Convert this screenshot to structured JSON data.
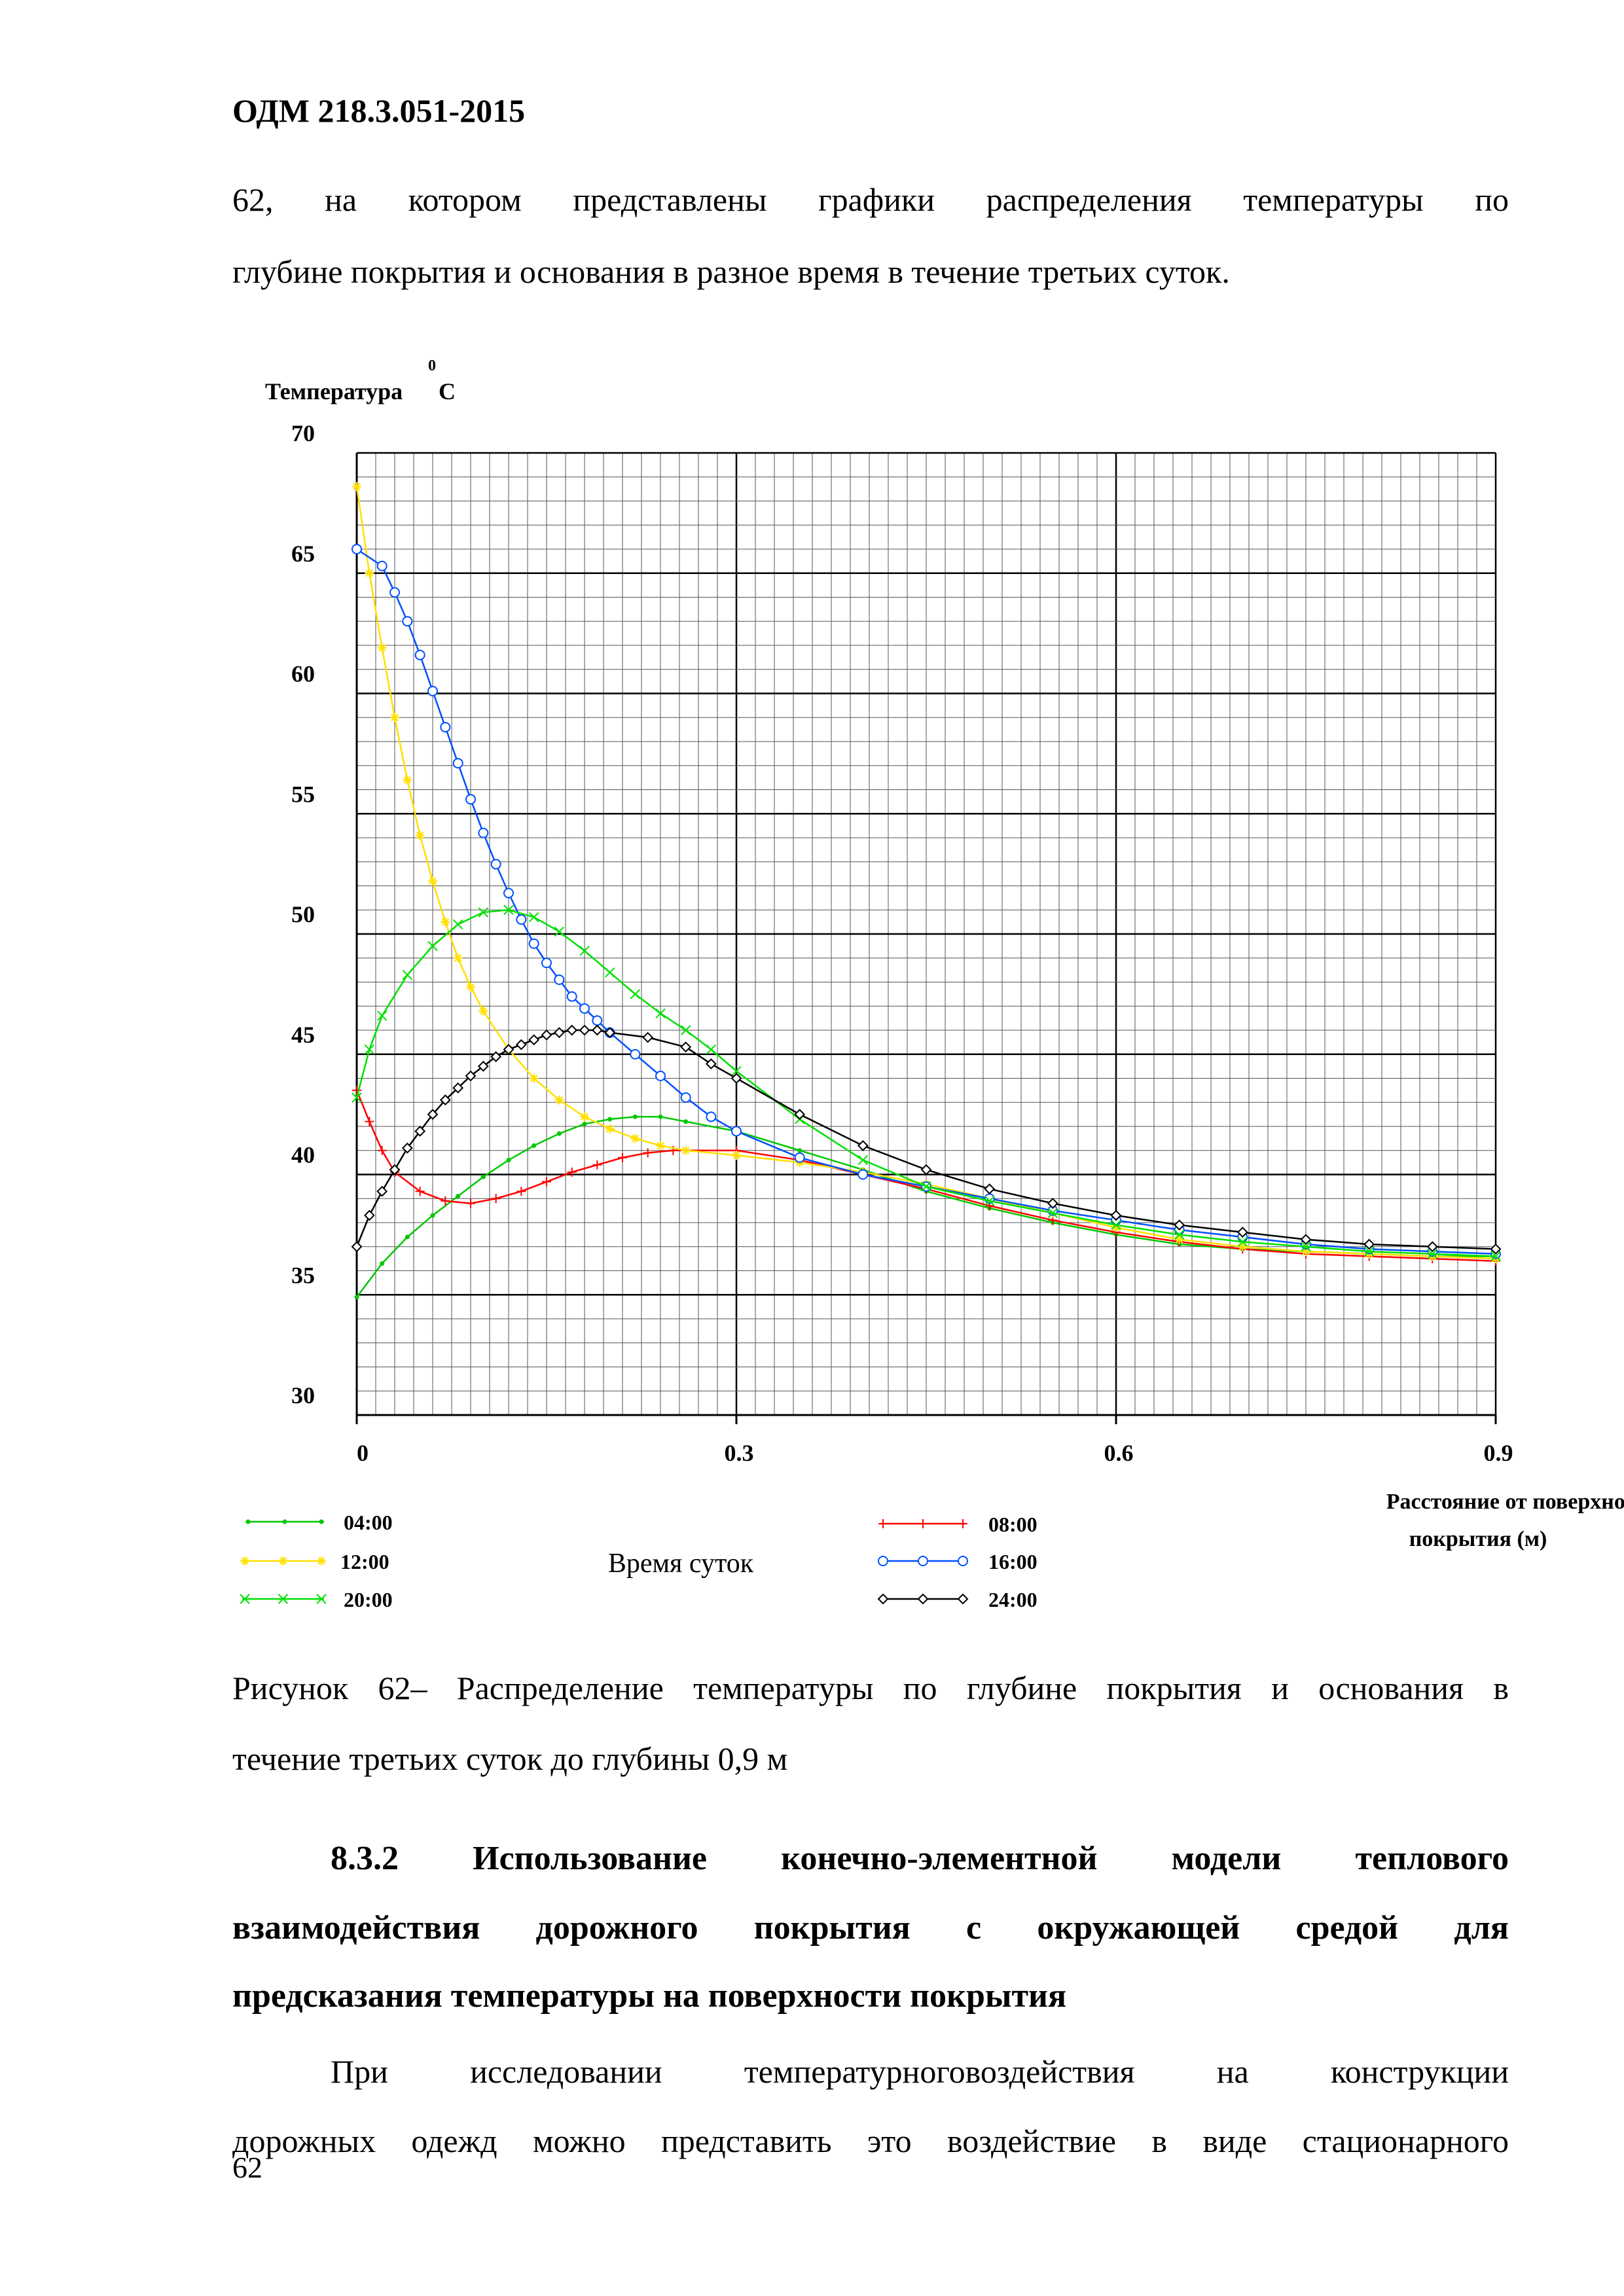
{
  "header": {
    "doc_code": "ОДМ 218.3.051-2015"
  },
  "intro": {
    "line1": "62, на котором представлены графики распределения температуры по",
    "line2": "глубине покрытия и основания в разное время в течение третьих суток."
  },
  "chart_data": {
    "type": "line",
    "ylabel": "Температура",
    "ylabel_sup": "0",
    "ylabel_unit": "C",
    "xlabel_line1": "Расстояние от поверхности",
    "xlabel_line2": "покрытия (м)",
    "legend_title": "Время суток",
    "xlim": [
      0,
      0.9
    ],
    "ylim": [
      30,
      70
    ],
    "x_ticks": [
      "0",
      "0.3",
      "0.6",
      "0.9"
    ],
    "y_ticks": [
      "30",
      "35",
      "40",
      "45",
      "50",
      "55",
      "60",
      "65",
      "70"
    ],
    "grid": true,
    "series": [
      {
        "name": "04:00",
        "color": "#00c800",
        "marker": "dot",
        "x": [
          0,
          0.02,
          0.04,
          0.06,
          0.08,
          0.1,
          0.12,
          0.14,
          0.16,
          0.18,
          0.2,
          0.22,
          0.24,
          0.26,
          0.3,
          0.35,
          0.4,
          0.45,
          0.5,
          0.55,
          0.6,
          0.65,
          0.7,
          0.75,
          0.8,
          0.85,
          0.9
        ],
        "y": [
          34.9,
          36.3,
          37.4,
          38.3,
          39.1,
          39.9,
          40.6,
          41.2,
          41.7,
          42.1,
          42.3,
          42.4,
          42.4,
          42.2,
          41.8,
          41.0,
          40.2,
          39.3,
          38.6,
          38.0,
          37.5,
          37.1,
          36.9,
          36.8,
          36.7,
          36.6,
          36.6
        ]
      },
      {
        "name": "08:00",
        "color": "#ff0000",
        "marker": "plus",
        "x": [
          0,
          0.01,
          0.02,
          0.03,
          0.05,
          0.07,
          0.09,
          0.11,
          0.13,
          0.15,
          0.17,
          0.19,
          0.21,
          0.23,
          0.25,
          0.3,
          0.35,
          0.4,
          0.45,
          0.5,
          0.55,
          0.6,
          0.65,
          0.7,
          0.75,
          0.8,
          0.85,
          0.9
        ],
        "y": [
          43.5,
          42.2,
          41.0,
          40.1,
          39.3,
          38.9,
          38.8,
          39.0,
          39.3,
          39.7,
          40.1,
          40.4,
          40.7,
          40.9,
          41.0,
          41.0,
          40.6,
          40.0,
          39.4,
          38.7,
          38.1,
          37.6,
          37.2,
          36.9,
          36.7,
          36.6,
          36.5,
          36.4
        ]
      },
      {
        "name": "12:00",
        "color": "#ffe000",
        "marker": "star",
        "x": [
          0,
          0.01,
          0.02,
          0.03,
          0.04,
          0.05,
          0.06,
          0.07,
          0.08,
          0.09,
          0.1,
          0.12,
          0.14,
          0.16,
          0.18,
          0.2,
          0.22,
          0.24,
          0.26,
          0.3,
          0.35,
          0.4,
          0.45,
          0.5,
          0.55,
          0.6,
          0.65,
          0.7,
          0.75,
          0.8,
          0.85,
          0.9
        ],
        "y": [
          68.6,
          65.0,
          61.9,
          59.0,
          56.4,
          54.1,
          52.2,
          50.5,
          49.0,
          47.8,
          46.8,
          45.2,
          44.0,
          43.1,
          42.4,
          41.9,
          41.5,
          41.2,
          41.0,
          40.8,
          40.5,
          40.1,
          39.6,
          39.0,
          38.4,
          37.8,
          37.3,
          37.0,
          36.8,
          36.7,
          36.6,
          36.5
        ]
      },
      {
        "name": "16:00",
        "color": "#0050ff",
        "marker": "circle",
        "x": [
          0,
          0.02,
          0.03,
          0.04,
          0.05,
          0.06,
          0.07,
          0.08,
          0.09,
          0.1,
          0.11,
          0.12,
          0.13,
          0.14,
          0.15,
          0.16,
          0.17,
          0.18,
          0.19,
          0.2,
          0.22,
          0.24,
          0.26,
          0.28,
          0.3,
          0.35,
          0.4,
          0.45,
          0.5,
          0.55,
          0.6,
          0.65,
          0.7,
          0.75,
          0.8,
          0.85,
          0.9
        ],
        "y": [
          66.0,
          65.3,
          64.2,
          63.0,
          61.6,
          60.1,
          58.6,
          57.1,
          55.6,
          54.2,
          52.9,
          51.7,
          50.6,
          49.6,
          48.8,
          48.1,
          47.4,
          46.9,
          46.4,
          45.9,
          45.0,
          44.1,
          43.2,
          42.4,
          41.8,
          40.7,
          40.0,
          39.5,
          39.0,
          38.5,
          38.1,
          37.7,
          37.4,
          37.1,
          36.9,
          36.8,
          36.7
        ]
      },
      {
        "name": "20:00",
        "color": "#00e000",
        "marker": "x",
        "x": [
          0,
          0.01,
          0.02,
          0.04,
          0.06,
          0.08,
          0.1,
          0.12,
          0.14,
          0.16,
          0.18,
          0.2,
          0.22,
          0.24,
          0.26,
          0.28,
          0.3,
          0.35,
          0.4,
          0.45,
          0.5,
          0.55,
          0.6,
          0.65,
          0.7,
          0.75,
          0.8,
          0.85,
          0.9
        ],
        "y": [
          43.2,
          45.2,
          46.6,
          48.3,
          49.5,
          50.4,
          50.9,
          51.0,
          50.7,
          50.1,
          49.3,
          48.4,
          47.5,
          46.7,
          46.0,
          45.2,
          44.3,
          42.3,
          40.6,
          39.5,
          38.9,
          38.4,
          37.9,
          37.5,
          37.2,
          37.0,
          36.8,
          36.7,
          36.6
        ]
      },
      {
        "name": "24:00",
        "color": "#000000",
        "marker": "diamond",
        "x": [
          0,
          0.01,
          0.02,
          0.03,
          0.04,
          0.05,
          0.06,
          0.07,
          0.08,
          0.09,
          0.1,
          0.11,
          0.12,
          0.13,
          0.14,
          0.15,
          0.16,
          0.17,
          0.18,
          0.19,
          0.2,
          0.23,
          0.26,
          0.28,
          0.3,
          0.35,
          0.4,
          0.45,
          0.5,
          0.55,
          0.6,
          0.65,
          0.7,
          0.75,
          0.8,
          0.85,
          0.9
        ],
        "y": [
          37.0,
          38.3,
          39.3,
          40.2,
          41.1,
          41.8,
          42.5,
          43.1,
          43.6,
          44.1,
          44.5,
          44.9,
          45.2,
          45.4,
          45.6,
          45.8,
          45.9,
          46.0,
          46.0,
          46.0,
          45.9,
          45.7,
          45.3,
          44.6,
          44.0,
          42.5,
          41.2,
          40.2,
          39.4,
          38.8,
          38.3,
          37.9,
          37.6,
          37.3,
          37.1,
          37.0,
          36.9
        ]
      }
    ]
  },
  "figure_caption": {
    "line1": "Рисунок 62– Распределение температуры по глубине покрытия и основания в",
    "line2": "течение третьих суток до глубины 0,9 м"
  },
  "section": {
    "number": "8.3.2",
    "line1_words": [
      "Использование",
      "конечно-элементной",
      "модели",
      "теплового"
    ],
    "line2": "взаимодействия дорожного покрытия с окружающей средой для",
    "line3": "предсказания температуры на поверхности покрытия"
  },
  "body_text": {
    "line1": "При исследовании температурноговоздействия на конструкции",
    "line2": "дорожных одежд можно представить это воздействие в виде стационарного"
  },
  "page_number": "62"
}
